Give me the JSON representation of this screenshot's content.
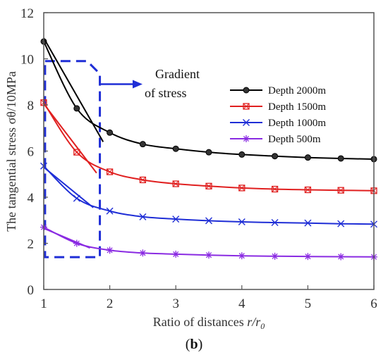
{
  "chart_data": {
    "type": "line",
    "xlabel_prefix": "Ratio of distances ",
    "xlabel_var": "r/r",
    "xlabel_sub": "0",
    "ylabel": "The tangential stress σθ/10MPa",
    "xlim": [
      1,
      6
    ],
    "ylim": [
      0,
      12
    ],
    "xticks": [
      "1",
      "2",
      "3",
      "4",
      "5",
      "6"
    ],
    "yticks": [
      "0",
      "2",
      "4",
      "6",
      "8",
      "10",
      "12"
    ],
    "grid": false,
    "legend_position": "right",
    "x": [
      1.0,
      1.5,
      2.0,
      2.5,
      3.0,
      3.5,
      4.0,
      4.5,
      5.0,
      5.5,
      6.0
    ],
    "series": [
      {
        "name": "Depth 2000m",
        "color": "#000000",
        "marker": "circle",
        "values": [
          10.75,
          7.85,
          6.8,
          6.3,
          6.1,
          5.95,
          5.85,
          5.78,
          5.72,
          5.68,
          5.65
        ]
      },
      {
        "name": "Depth 1500m",
        "color": "#e02020",
        "marker": "square",
        "values": [
          8.1,
          5.95,
          5.1,
          4.75,
          4.58,
          4.48,
          4.4,
          4.35,
          4.32,
          4.3,
          4.28
        ]
      },
      {
        "name": "Depth 1000m",
        "color": "#1f2ed6",
        "marker": "x",
        "values": [
          5.35,
          3.95,
          3.4,
          3.15,
          3.05,
          2.98,
          2.93,
          2.9,
          2.88,
          2.85,
          2.83
        ]
      },
      {
        "name": "Depth 500m",
        "color": "#8a2be2",
        "marker": "asterisk",
        "values": [
          2.7,
          2.0,
          1.7,
          1.58,
          1.53,
          1.49,
          1.46,
          1.44,
          1.43,
          1.42,
          1.41
        ]
      }
    ],
    "tangent_lines": [
      {
        "color": "#000000",
        "from": [
          1.0,
          10.9
        ],
        "to": [
          1.9,
          6.4
        ]
      },
      {
        "color": "#e02020",
        "from": [
          1.0,
          8.05
        ],
        "to": [
          1.8,
          5.05
        ]
      },
      {
        "color": "#1f2ed6",
        "from": [
          1.0,
          5.3
        ],
        "to": [
          1.75,
          3.55
        ]
      },
      {
        "color": "#8a2be2",
        "from": [
          1.0,
          2.65
        ],
        "to": [
          1.7,
          1.8
        ]
      }
    ],
    "annotation": {
      "line1": "Gradient",
      "line2": "of stress",
      "box_x": [
        1.02,
        1.85
      ],
      "box_y": [
        1.4,
        9.9
      ]
    },
    "caption": "b"
  }
}
